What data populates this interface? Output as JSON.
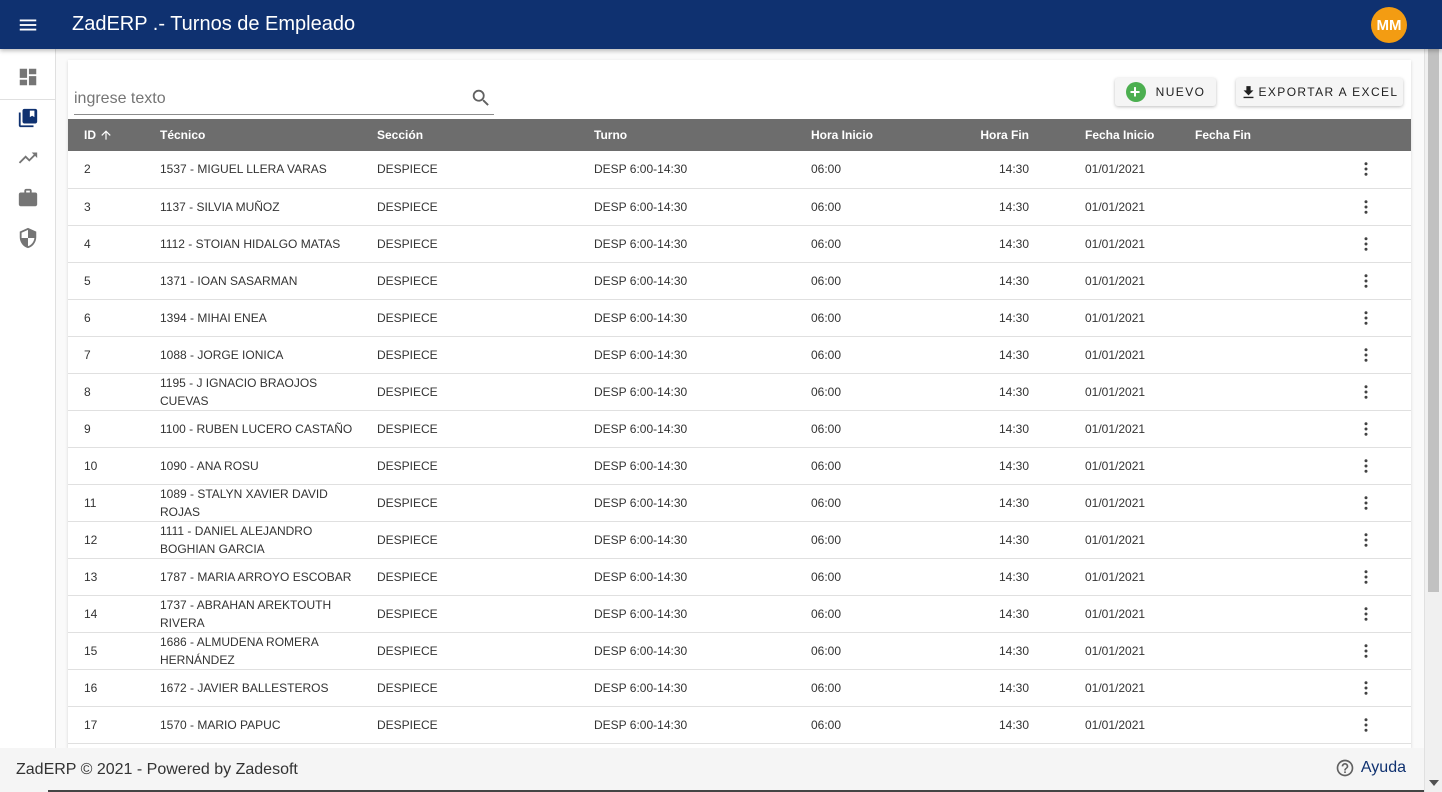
{
  "header": {
    "title": "ZadERP .- Turnos de Empleado",
    "avatar": "MM"
  },
  "sidebar": {
    "items": [
      {
        "name": "dashboard-icon"
      },
      {
        "name": "library-books-icon"
      },
      {
        "name": "trending-up-icon"
      },
      {
        "name": "briefcase-icon"
      },
      {
        "name": "security-shield-icon"
      }
    ]
  },
  "toolbar": {
    "search_placeholder": "ingrese texto",
    "nuevo_label": "NUEVO",
    "excel_label": "EXPORTAR A EXCEL"
  },
  "table": {
    "columns": [
      "ID",
      "Técnico",
      "Sección",
      "Turno",
      "Hora Inicio",
      "Hora Fin",
      "Fecha Inicio",
      "Fecha Fin"
    ],
    "rows": [
      {
        "id": "2",
        "tecnico": "1537 - MIGUEL LLERA VARAS",
        "seccion": "DESPIECE",
        "turno": "DESP 6:00-14:30",
        "hora_inicio": "06:00",
        "hora_fin": "14:30",
        "fecha_inicio": "01/01/2021",
        "fecha_fin": ""
      },
      {
        "id": "3",
        "tecnico": "1137 - SILVIA MUÑOZ",
        "seccion": "DESPIECE",
        "turno": "DESP 6:00-14:30",
        "hora_inicio": "06:00",
        "hora_fin": "14:30",
        "fecha_inicio": "01/01/2021",
        "fecha_fin": ""
      },
      {
        "id": "4",
        "tecnico": "1112 - STOIAN HIDALGO MATAS",
        "seccion": "DESPIECE",
        "turno": "DESP 6:00-14:30",
        "hora_inicio": "06:00",
        "hora_fin": "14:30",
        "fecha_inicio": "01/01/2021",
        "fecha_fin": ""
      },
      {
        "id": "5",
        "tecnico": "1371 - IOAN SASARMAN",
        "seccion": "DESPIECE",
        "turno": "DESP 6:00-14:30",
        "hora_inicio": "06:00",
        "hora_fin": "14:30",
        "fecha_inicio": "01/01/2021",
        "fecha_fin": ""
      },
      {
        "id": "6",
        "tecnico": "1394 - MIHAI ENEA",
        "seccion": "DESPIECE",
        "turno": "DESP 6:00-14:30",
        "hora_inicio": "06:00",
        "hora_fin": "14:30",
        "fecha_inicio": "01/01/2021",
        "fecha_fin": ""
      },
      {
        "id": "7",
        "tecnico": "1088 - JORGE IONICA",
        "seccion": "DESPIECE",
        "turno": "DESP 6:00-14:30",
        "hora_inicio": "06:00",
        "hora_fin": "14:30",
        "fecha_inicio": "01/01/2021",
        "fecha_fin": ""
      },
      {
        "id": "8",
        "tecnico": "1195 - J IGNACIO BRAOJOS CUEVAS",
        "seccion": "DESPIECE",
        "turno": "DESP 6:00-14:30",
        "hora_inicio": "06:00",
        "hora_fin": "14:30",
        "fecha_inicio": "01/01/2021",
        "fecha_fin": ""
      },
      {
        "id": "9",
        "tecnico": "1100 - RUBEN LUCERO CASTAÑO",
        "seccion": "DESPIECE",
        "turno": "DESP 6:00-14:30",
        "hora_inicio": "06:00",
        "hora_fin": "14:30",
        "fecha_inicio": "01/01/2021",
        "fecha_fin": ""
      },
      {
        "id": "10",
        "tecnico": "1090 - ANA ROSU",
        "seccion": "DESPIECE",
        "turno": "DESP 6:00-14:30",
        "hora_inicio": "06:00",
        "hora_fin": "14:30",
        "fecha_inicio": "01/01/2021",
        "fecha_fin": ""
      },
      {
        "id": "11",
        "tecnico": "1089 - STALYN XAVIER DAVID ROJAS",
        "seccion": "DESPIECE",
        "turno": "DESP 6:00-14:30",
        "hora_inicio": "06:00",
        "hora_fin": "14:30",
        "fecha_inicio": "01/01/2021",
        "fecha_fin": ""
      },
      {
        "id": "12",
        "tecnico": "1111 - DANIEL ALEJANDRO BOGHIAN GARCIA",
        "seccion": "DESPIECE",
        "turno": "DESP 6:00-14:30",
        "hora_inicio": "06:00",
        "hora_fin": "14:30",
        "fecha_inicio": "01/01/2021",
        "fecha_fin": ""
      },
      {
        "id": "13",
        "tecnico": "1787 - MARIA ARROYO ESCOBAR",
        "seccion": "DESPIECE",
        "turno": "DESP 6:00-14:30",
        "hora_inicio": "06:00",
        "hora_fin": "14:30",
        "fecha_inicio": "01/01/2021",
        "fecha_fin": ""
      },
      {
        "id": "14",
        "tecnico": "1737 - ABRAHAN AREKTOUTH RIVERA",
        "seccion": "DESPIECE",
        "turno": "DESP 6:00-14:30",
        "hora_inicio": "06:00",
        "hora_fin": "14:30",
        "fecha_inicio": "01/01/2021",
        "fecha_fin": ""
      },
      {
        "id": "15",
        "tecnico": "1686 - ALMUDENA ROMERA HERNÁNDEZ",
        "seccion": "DESPIECE",
        "turno": "DESP 6:00-14:30",
        "hora_inicio": "06:00",
        "hora_fin": "14:30",
        "fecha_inicio": "01/01/2021",
        "fecha_fin": ""
      },
      {
        "id": "16",
        "tecnico": "1672 - JAVIER BALLESTEROS",
        "seccion": "DESPIECE",
        "turno": "DESP 6:00-14:30",
        "hora_inicio": "06:00",
        "hora_fin": "14:30",
        "fecha_inicio": "01/01/2021",
        "fecha_fin": ""
      },
      {
        "id": "17",
        "tecnico": "1570 - MARIO PAPUC",
        "seccion": "DESPIECE",
        "turno": "DESP 6:00-14:30",
        "hora_inicio": "06:00",
        "hora_fin": "14:30",
        "fecha_inicio": "01/01/2021",
        "fecha_fin": ""
      }
    ]
  },
  "footer": {
    "text": "ZadERP © 2021 - Powered by Zadesoft",
    "help_label": "Ayuda"
  },
  "colors": {
    "appbar": "#0f3170",
    "avatar": "#f39c12",
    "table_header": "#6d6d6d",
    "add_icon": "#4caf50"
  }
}
